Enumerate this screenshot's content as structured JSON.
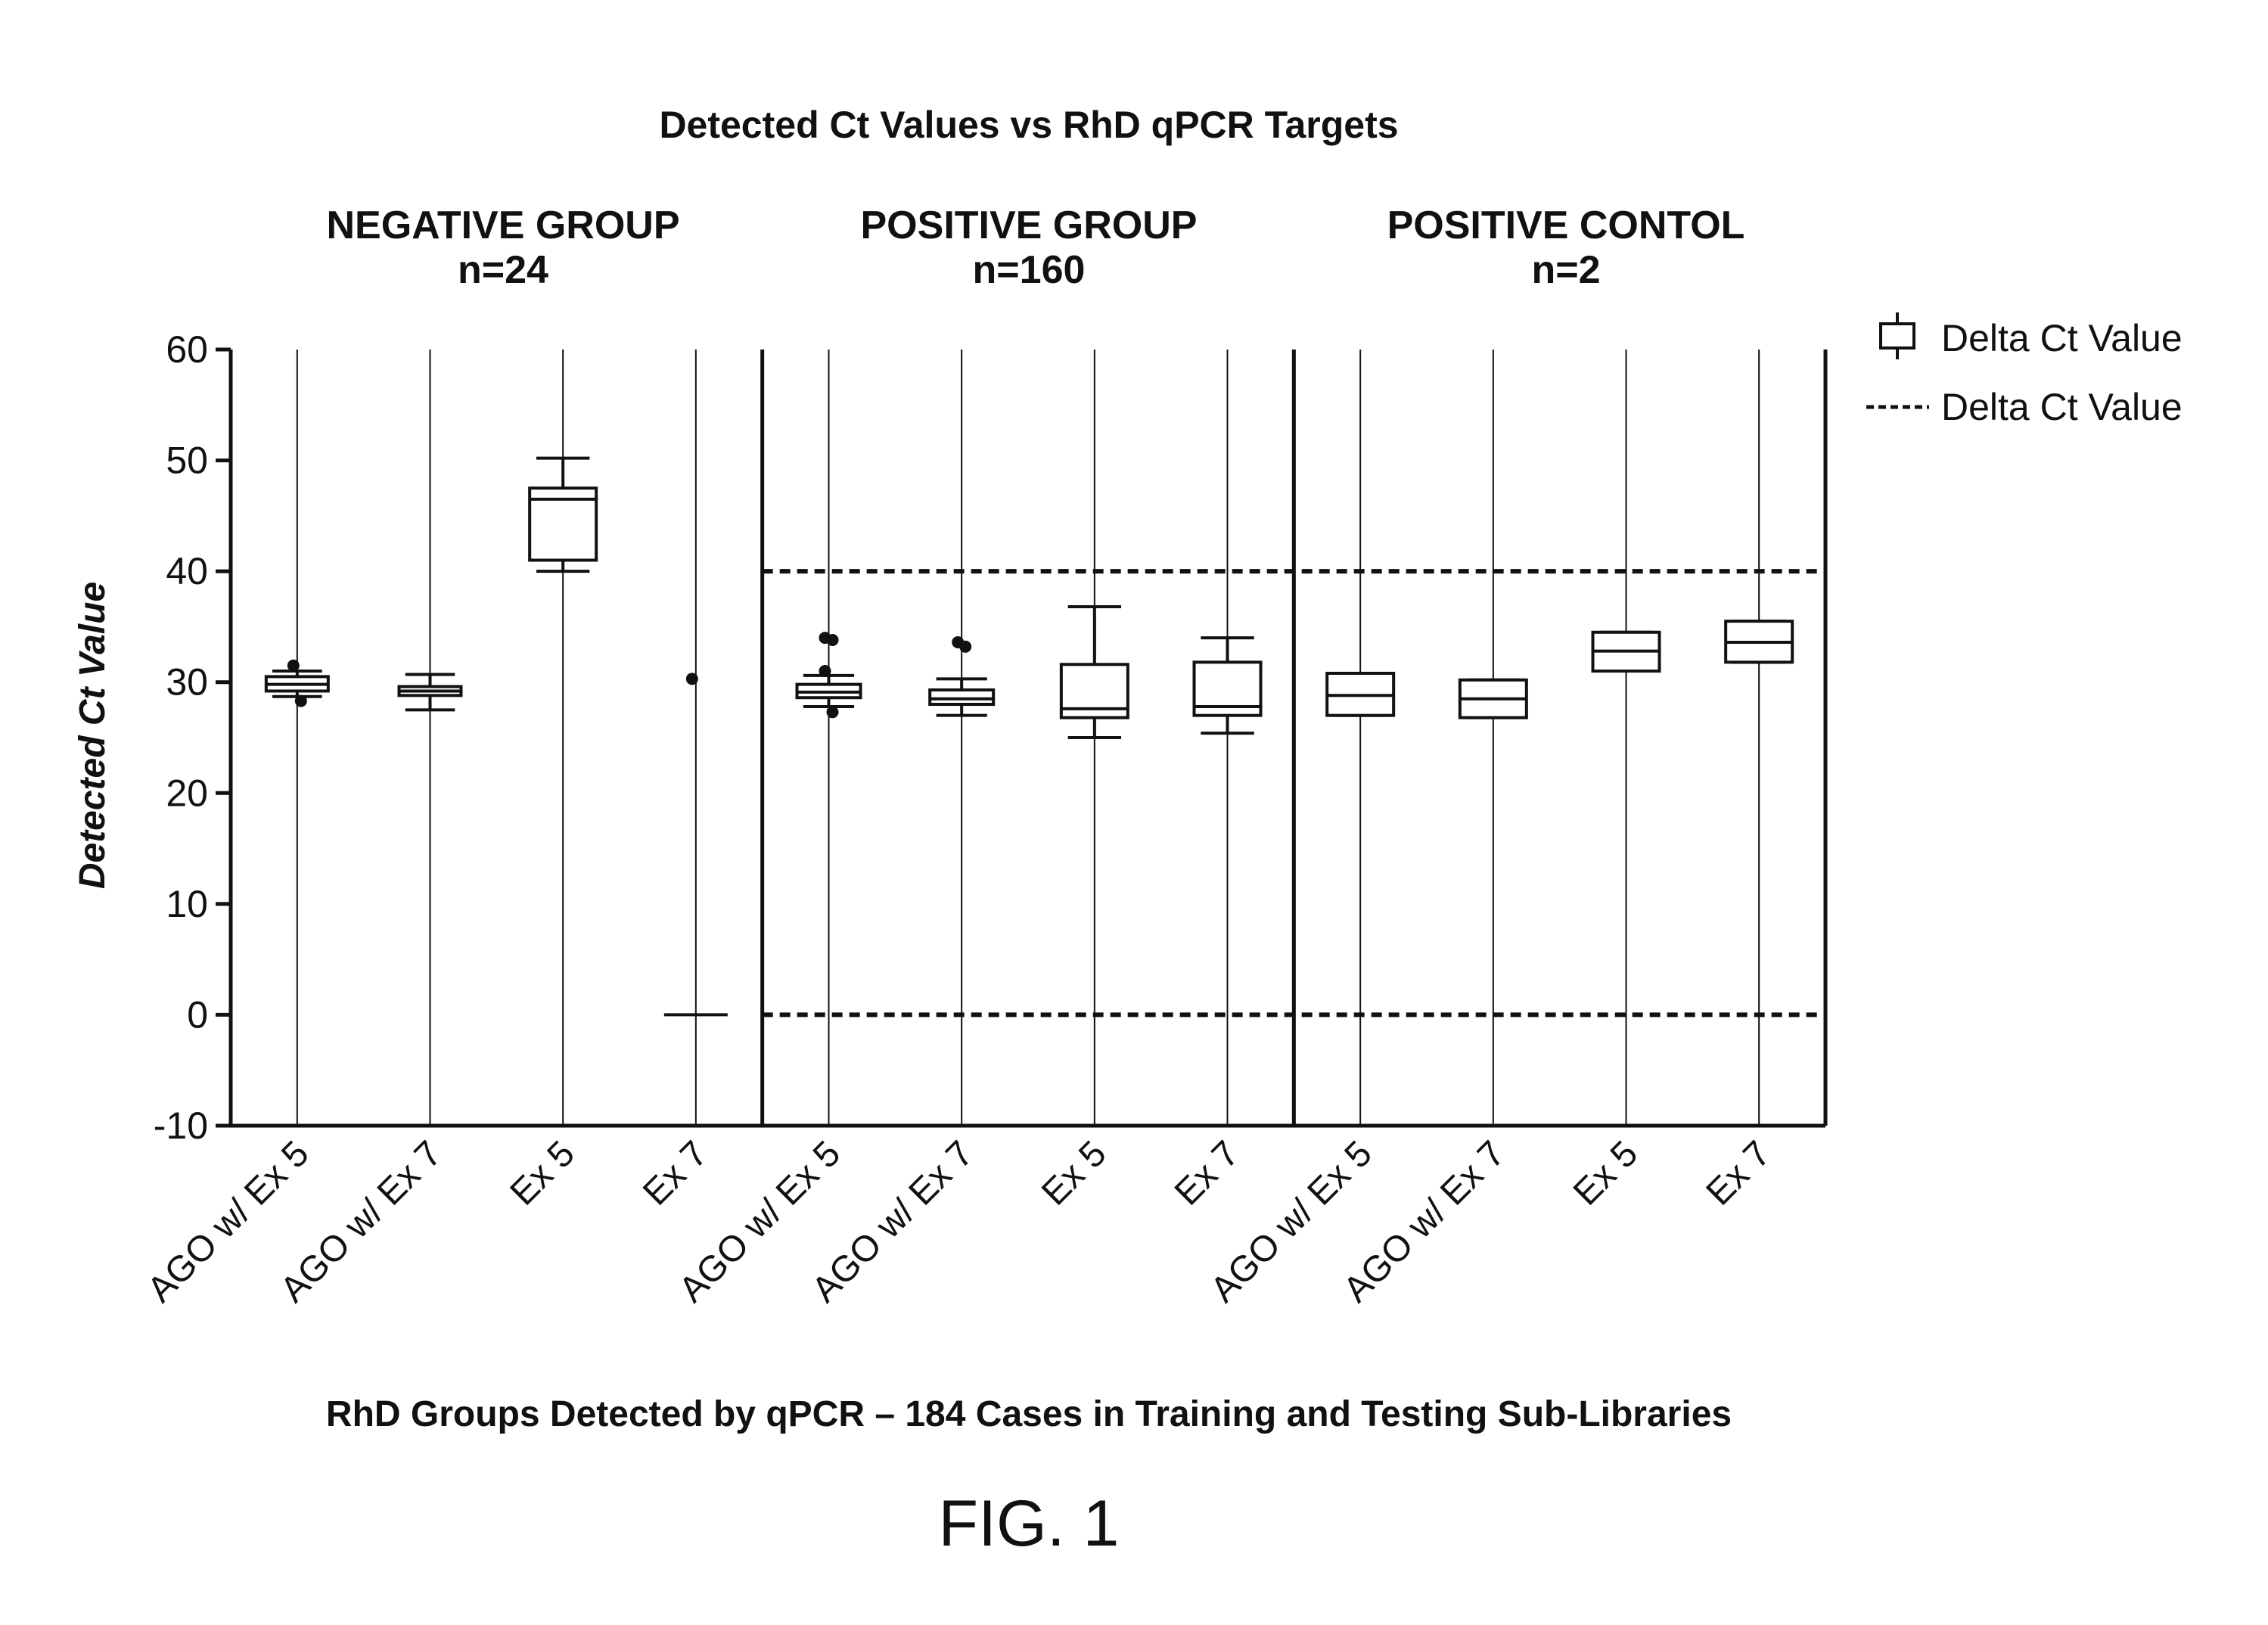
{
  "chart_data": {
    "type": "box",
    "title": "Detected Ct Values vs RhD qPCR Targets",
    "xlabel": "RhD Groups Detected by qPCR – 184 Cases in Training and Testing Sub-Libraries",
    "ylabel": "Detected Ct Value",
    "ylim": [
      -10,
      60
    ],
    "yticks": [
      "60",
      "50",
      "40",
      "30",
      "20",
      "10",
      "0",
      "-10"
    ],
    "ytick_values": [
      60,
      50,
      40,
      30,
      20,
      10,
      0,
      -10
    ],
    "reference_lines": [
      40,
      0
    ],
    "legend": {
      "placement": "top-right",
      "box_label": "Delta Ct Value",
      "dash_label": "Delta Ct Value"
    },
    "groups": [
      {
        "title": "NEGATIVE GROUP",
        "n_label": "n=24",
        "categories": [
          "AGO w/ Ex 5",
          "AGO w/ Ex 7",
          "Ex 5",
          "Ex 7"
        ],
        "boxes": [
          {
            "whisker_low": 28.7,
            "q1": 29.2,
            "median": 29.8,
            "q3": 30.5,
            "whisker_high": 31.0,
            "outliers": [
              31.5,
              28.3
            ]
          },
          {
            "whisker_low": 27.5,
            "q1": 28.8,
            "median": 29.2,
            "q3": 29.6,
            "whisker_high": 30.7,
            "outliers": []
          },
          {
            "whisker_low": 40.0,
            "q1": 41.0,
            "median": 46.5,
            "q3": 47.5,
            "whisker_high": 50.2,
            "outliers": []
          },
          {
            "whisker_low": 0,
            "q1": 0,
            "median": 0,
            "q3": 0,
            "whisker_high": 0,
            "outliers": [
              30.3
            ]
          }
        ]
      },
      {
        "title": "POSITIVE GROUP",
        "n_label": "n=160",
        "categories": [
          "AGO w/ Ex 5",
          "AGO w/ Ex 7",
          "Ex 5",
          "Ex 7"
        ],
        "boxes": [
          {
            "whisker_low": 27.8,
            "q1": 28.6,
            "median": 29.1,
            "q3": 29.8,
            "whisker_high": 30.6,
            "outliers": [
              34.0,
              33.8,
              31.0,
              27.3
            ]
          },
          {
            "whisker_low": 27.0,
            "q1": 28.0,
            "median": 28.5,
            "q3": 29.3,
            "whisker_high": 30.3,
            "outliers": [
              33.6,
              33.2
            ]
          },
          {
            "whisker_low": 25.0,
            "q1": 26.8,
            "median": 27.6,
            "q3": 31.6,
            "whisker_high": 36.8,
            "outliers": []
          },
          {
            "whisker_low": 25.4,
            "q1": 27.0,
            "median": 27.8,
            "q3": 31.8,
            "whisker_high": 34.0,
            "outliers": []
          }
        ]
      },
      {
        "title": "POSITIVE CONTOL",
        "n_label": "n=2",
        "categories": [
          "AGO w/ Ex 5",
          "AGO w/ Ex 7",
          "Ex 5",
          "Ex 7"
        ],
        "boxes": [
          {
            "whisker_low": 27.0,
            "q1": 27.0,
            "median": 28.8,
            "q3": 30.8,
            "whisker_high": 30.8,
            "outliers": []
          },
          {
            "whisker_low": 26.8,
            "q1": 26.8,
            "median": 28.5,
            "q3": 30.2,
            "whisker_high": 30.2,
            "outliers": []
          },
          {
            "whisker_low": 31.0,
            "q1": 31.0,
            "median": 32.8,
            "q3": 34.5,
            "whisker_high": 34.5,
            "outliers": []
          },
          {
            "whisker_low": 31.8,
            "q1": 31.8,
            "median": 33.6,
            "q3": 35.5,
            "whisker_high": 35.5,
            "outliers": []
          }
        ]
      }
    ]
  },
  "figure_label": "FIG. 1"
}
